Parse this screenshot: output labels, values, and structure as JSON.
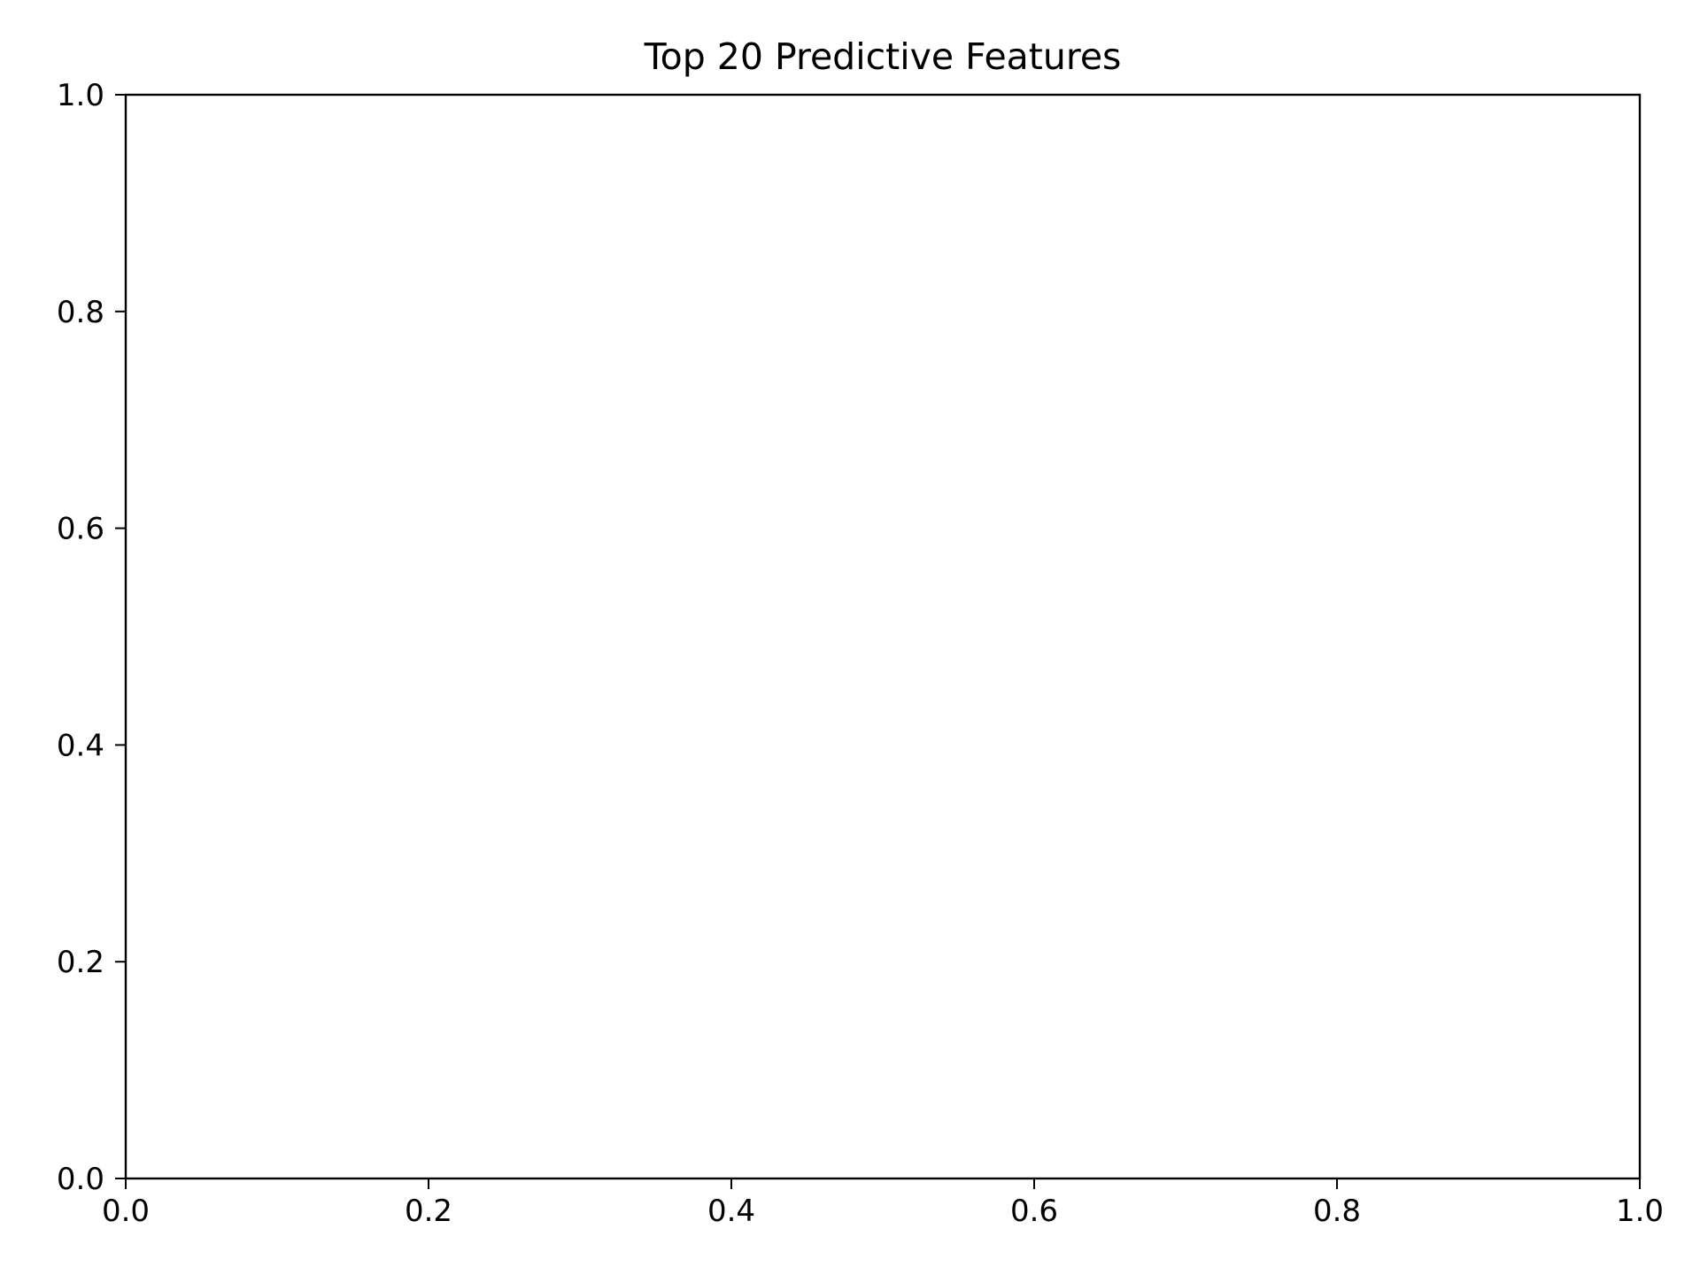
{
  "chart_data": {
    "type": "bar",
    "title": "Top 20 Predictive Features",
    "xlabel": "",
    "ylabel": "",
    "xlim": [
      0.0,
      1.0
    ],
    "ylim": [
      0.0,
      1.0
    ],
    "x_ticks": [
      "0.0",
      "0.2",
      "0.4",
      "0.6",
      "0.8",
      "1.0"
    ],
    "y_ticks": [
      "0.0",
      "0.2",
      "0.4",
      "0.6",
      "0.8",
      "1.0"
    ],
    "categories": [],
    "values": [],
    "grid": false,
    "legend": "none"
  }
}
